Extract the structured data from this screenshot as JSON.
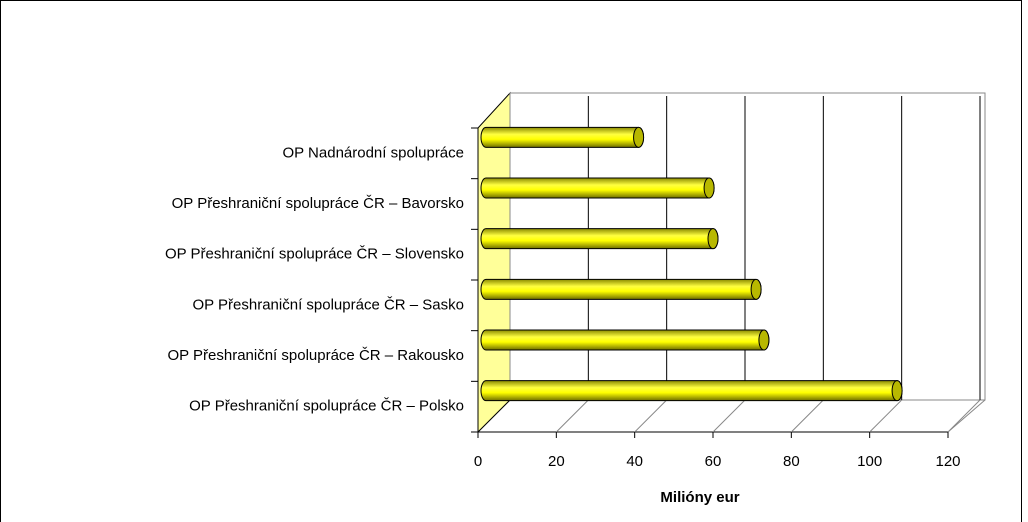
{
  "chart_data": {
    "type": "bar3d",
    "orientation": "horizontal",
    "x_label": "Milióny eur",
    "categories": [
      "OP Nadnárodní spolupráce",
      "OP Přeshraniční spolupráce ČR – Bavorsko",
      "OP Přeshraniční spolupráce ČR – Slovensko",
      "OP Přeshraniční spolupráce ČR – Sasko",
      "OP Přeshraniční spolupráce ČR – Rakousko",
      "OP Přeshraniční spolupráce ČR – Polsko"
    ],
    "values": [
      41,
      59,
      60,
      71,
      73,
      107
    ],
    "color": "#ffff00",
    "xlim": [
      0,
      120
    ],
    "xticks": [
      0,
      20,
      40,
      60,
      80,
      100,
      120
    ],
    "grid": true
  }
}
